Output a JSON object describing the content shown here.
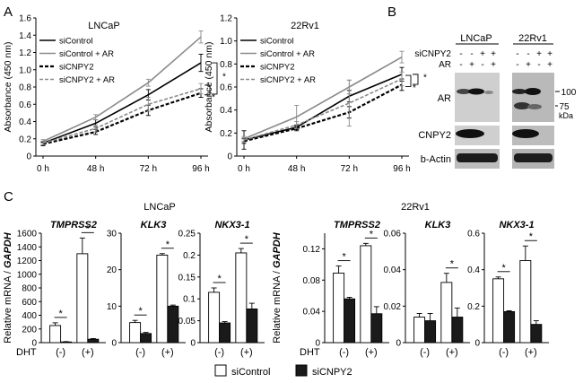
{
  "panel_labels": [
    "A",
    "B",
    "C"
  ],
  "chart_data": [
    {
      "type": "line",
      "panel": "A",
      "title": "LNCaP",
      "xlabel": "",
      "ylabel": "Absorbance (450 nm)",
      "categories": [
        "0 h",
        "48 h",
        "72 h",
        "96 h"
      ],
      "ylim": [
        0,
        1.6
      ],
      "yticks": [
        "0",
        "0.2",
        "0.4",
        "0.6",
        "0.8",
        "1.0",
        "1.2",
        "1.4",
        "1.6"
      ],
      "series": [
        {
          "name": "siControl",
          "style": "solid-black",
          "values": [
            0.15,
            0.38,
            0.71,
            1.08
          ],
          "err": [
            0.02,
            0.04,
            0.06,
            0.1
          ]
        },
        {
          "name": "siControl + AR",
          "style": "solid-gray",
          "values": [
            0.17,
            0.45,
            0.85,
            1.38
          ],
          "err": [
            0.02,
            0.03,
            0.04,
            0.07
          ]
        },
        {
          "name": "siCNPY2",
          "style": "dash-black",
          "values": [
            0.14,
            0.28,
            0.53,
            0.73
          ],
          "err": [
            0.02,
            0.03,
            0.06,
            0.05
          ]
        },
        {
          "name": "siCNPY2 + AR",
          "style": "dash-gray",
          "values": [
            0.15,
            0.32,
            0.6,
            0.78
          ],
          "err": [
            0.02,
            0.04,
            0.08,
            0.06
          ]
        }
      ],
      "annotations": [
        "*",
        "*"
      ]
    },
    {
      "type": "line",
      "panel": "A",
      "title": "22Rv1",
      "xlabel": "",
      "ylabel": "Absorbance (450 nm)",
      "categories": [
        "0 h",
        "48 h",
        "72 h",
        "96 h"
      ],
      "ylim": [
        0,
        1.2
      ],
      "yticks": [
        "0",
        "0.2",
        "0.4",
        "0.6",
        "0.8",
        "1.0",
        "1.2"
      ],
      "series": [
        {
          "name": "siControl",
          "style": "solid-black",
          "values": [
            0.14,
            0.25,
            0.52,
            0.71
          ],
          "err": [
            0.08,
            0.02,
            0.05,
            0.06
          ]
        },
        {
          "name": "siControl + AR",
          "style": "solid-gray",
          "values": [
            0.15,
            0.34,
            0.6,
            0.86
          ],
          "err": [
            0.02,
            0.1,
            0.06,
            0.05
          ]
        },
        {
          "name": "siCNPY2",
          "style": "dash-black",
          "values": [
            0.13,
            0.24,
            0.38,
            0.62
          ],
          "err": [
            0.02,
            0.02,
            0.05,
            0.05
          ]
        },
        {
          "name": "siCNPY2 + AR",
          "style": "dash-gray",
          "values": [
            0.14,
            0.27,
            0.46,
            0.67
          ],
          "err": [
            0.02,
            0.03,
            0.2,
            0.06
          ]
        }
      ],
      "annotations": [
        "*",
        "*"
      ]
    },
    {
      "type": "bar",
      "panel": "C",
      "cell_line": "LNCaP",
      "title": "TMPRSS2",
      "ylabel": "Relative mRNA / GAPDH",
      "xlabel": "DHT",
      "categories": [
        "(-)",
        "(+)"
      ],
      "ylim": [
        0,
        1600
      ],
      "yticks": [
        "0",
        "200",
        "400",
        "600",
        "800",
        "1000",
        "1200",
        "1400",
        "1600"
      ],
      "series": [
        {
          "name": "siControl",
          "values": [
            250,
            1300
          ],
          "err": [
            40,
            230
          ]
        },
        {
          "name": "siCNPY2",
          "values": [
            10,
            50
          ],
          "err": [
            5,
            10
          ]
        }
      ],
      "annotations": [
        "*",
        "*"
      ]
    },
    {
      "type": "bar",
      "panel": "C",
      "cell_line": "LNCaP",
      "title": "KLK3",
      "ylabel": "",
      "xlabel": "",
      "categories": [
        "(-)",
        "(+)"
      ],
      "ylim": [
        0,
        30
      ],
      "yticks": [
        "0",
        "10",
        "20",
        "30"
      ],
      "series": [
        {
          "name": "siControl",
          "values": [
            5.5,
            24
          ],
          "err": [
            0.6,
            0.4
          ]
        },
        {
          "name": "siCNPY2",
          "values": [
            2.5,
            10
          ],
          "err": [
            0.3,
            0.3
          ]
        }
      ],
      "annotations": [
        "*",
        "*"
      ]
    },
    {
      "type": "bar",
      "panel": "C",
      "cell_line": "LNCaP",
      "title": "NKX3-1",
      "ylabel": "",
      "xlabel": "",
      "categories": [
        "(-)",
        "(+)"
      ],
      "ylim": [
        0,
        0.25
      ],
      "yticks": [
        "0",
        "0.05",
        "0.1",
        "0.15",
        "0.2",
        "0.25"
      ],
      "series": [
        {
          "name": "siControl",
          "values": [
            0.115,
            0.205
          ],
          "err": [
            0.01,
            0.01
          ]
        },
        {
          "name": "siCNPY2",
          "values": [
            0.045,
            0.077
          ],
          "err": [
            0.003,
            0.013
          ]
        }
      ],
      "annotations": [
        "*",
        "*"
      ]
    },
    {
      "type": "bar",
      "panel": "C",
      "cell_line": "22Rv1",
      "title": "TMPRSS2",
      "ylabel": "Relative mRNA / GAPDH",
      "xlabel": "DHT",
      "categories": [
        "(-)",
        "(+)"
      ],
      "ylim": [
        0,
        0.14
      ],
      "yticks": [
        "0",
        "0.04",
        "0.08",
        "0.12"
      ],
      "series": [
        {
          "name": "siControl",
          "values": [
            0.089,
            0.124
          ],
          "err": [
            0.009,
            0.003
          ]
        },
        {
          "name": "siCNPY2",
          "values": [
            0.056,
            0.037
          ],
          "err": [
            0.002,
            0.009
          ]
        }
      ],
      "annotations": [
        "*",
        "*"
      ]
    },
    {
      "type": "bar",
      "panel": "C",
      "cell_line": "22Rv1",
      "title": "KLK3",
      "ylabel": "",
      "xlabel": "",
      "categories": [
        "(-)",
        "(+)"
      ],
      "ylim": [
        0,
        0.06
      ],
      "yticks": [
        "0",
        "0.02",
        "0.04",
        "0.06"
      ],
      "series": [
        {
          "name": "siControl",
          "values": [
            0.014,
            0.033
          ],
          "err": [
            0.002,
            0.005
          ]
        },
        {
          "name": "siCNPY2",
          "values": [
            0.012,
            0.014
          ],
          "err": [
            0.004,
            0.005
          ]
        }
      ],
      "annotations": [
        "*"
      ]
    },
    {
      "type": "bar",
      "panel": "C",
      "cell_line": "22Rv1",
      "title": "NKX3-1",
      "ylabel": "",
      "xlabel": "",
      "categories": [
        "(-)",
        "(+)"
      ],
      "ylim": [
        0,
        0.6
      ],
      "yticks": [
        "0",
        "0.2",
        "0.4",
        "0.6"
      ],
      "series": [
        {
          "name": "siControl",
          "values": [
            0.35,
            0.45
          ],
          "err": [
            0.01,
            0.08
          ]
        },
        {
          "name": "siCNPY2",
          "values": [
            0.17,
            0.1
          ],
          "err": [
            0.005,
            0.02
          ]
        }
      ],
      "annotations": [
        "*",
        "*"
      ]
    }
  ],
  "western_blot": {
    "cell_lines": [
      "LNCaP",
      "22Rv1"
    ],
    "row_labels": [
      "siCNPY2",
      "AR"
    ],
    "conditions": [
      [
        "-",
        "-",
        "+",
        "+"
      ],
      [
        "-",
        "+",
        "-",
        "+"
      ]
    ],
    "bands": [
      "AR",
      "CNPY2",
      "b-Actin"
    ],
    "markers": [
      "100",
      "75",
      "kDa"
    ]
  },
  "section_titles": {
    "lncap": "LNCaP",
    "rv1": "22Rv1"
  },
  "legend": {
    "control": "siControl",
    "cnpy2": "siCNPY2"
  },
  "colors": {
    "control": "#ffffff",
    "cnpy2": "#1a1a1a",
    "gray_line": "#8a8a8a",
    "black_line": "#000000"
  }
}
